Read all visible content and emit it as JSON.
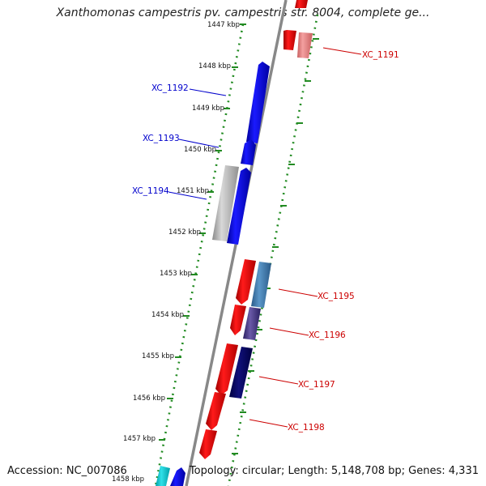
{
  "title": "Xanthomonas campestris pv. campestris str. 8004, complete ge...",
  "footer": {
    "accession": "Accession: NC_007086",
    "summary": "Topology: circular; Length: 5,148,708 bp; Genes: 4,331"
  },
  "kbp_labels": [
    "1447 kbp",
    "1448 kbp",
    "1449 kbp",
    "1450 kbp",
    "1451 kbp",
    "1452 kbp",
    "1453 kbp",
    "1454 kbp",
    "1455 kbp",
    "1456 kbp",
    "1457 kbp",
    "1458 kbp"
  ],
  "gene_labels": [
    "XC_1191",
    "XC_1192",
    "XC_1193",
    "XC_1194",
    "XC_1195",
    "XC_1196",
    "XC_1197",
    "XC_1198"
  ],
  "colors": {
    "forward_gene": "#ff0000",
    "reverse_gene": "#0000ff",
    "backbone": "#888888",
    "tick": "#228b22",
    "forward_label": "#cc0000",
    "reverse_label": "#0000cc"
  }
}
